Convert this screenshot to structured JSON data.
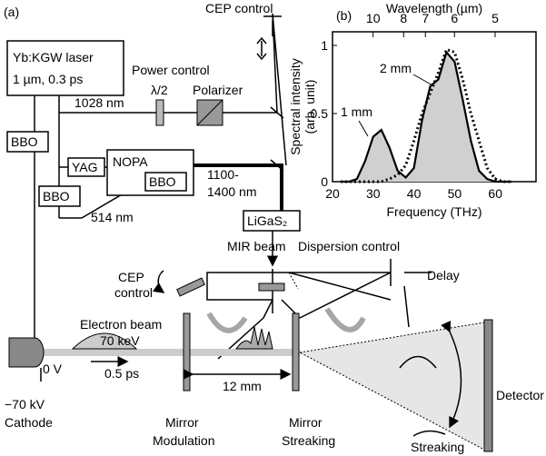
{
  "panel_a": {
    "label": "(a)",
    "texts": [
      "Yb:KGW laser",
      "1 µm, 0.3 ps",
      "CEP control",
      "Power control",
      "λ/2",
      "Polarizer",
      "1028 nm",
      "BBO",
      "YAG",
      "NOPA",
      "BBO",
      "BBO",
      "1100-",
      "1400 nm",
      "514 nm",
      "LiGaS₂",
      "MIR beam",
      "Dispersion control",
      "CEP",
      "control",
      "Delay",
      "Electron beam",
      "70 keV",
      "0 V",
      "0.5 ps",
      "12 mm",
      "−70 kV",
      "Cathode",
      "Mirror",
      "Modulation",
      "Mirror",
      "Streaking",
      "Detector",
      "Streaking"
    ]
  },
  "chart_data": {
    "type": "line",
    "label": "(b)",
    "xlabel": "Frequency (THz)",
    "x2label": "Wavelength (µm)",
    "ylabel": [
      "Spectral intensity",
      "(arb. unit)"
    ],
    "x": [
      22,
      24,
      26,
      28,
      30,
      32,
      34,
      36,
      38,
      40,
      42,
      44,
      46,
      48,
      50,
      52,
      54,
      56,
      58,
      60,
      62,
      64
    ],
    "series": [
      {
        "name": "1 mm",
        "color": "#000000",
        "fill": "#d0d0d0",
        "dash": "solid",
        "values": [
          0,
          0,
          0.02,
          0.15,
          0.33,
          0.38,
          0.25,
          0.08,
          0.03,
          0.1,
          0.45,
          0.7,
          0.75,
          0.95,
          0.88,
          0.6,
          0.3,
          0.08,
          0.02,
          0,
          0,
          0
        ]
      },
      {
        "name": "2 mm",
        "color": "#000000",
        "dash": "dotted",
        "values": [
          0,
          0,
          0,
          0,
          0,
          0,
          0.02,
          0.05,
          0.12,
          0.3,
          0.5,
          0.65,
          0.8,
          0.97,
          0.95,
          0.75,
          0.5,
          0.3,
          0.1,
          0.02,
          0,
          0
        ]
      }
    ],
    "xlim": [
      20,
      70
    ],
    "xticks": [
      20,
      30,
      40,
      50,
      60
    ],
    "x2ticks": [
      10,
      8,
      7,
      6,
      5
    ],
    "ylim": [
      0,
      1.1
    ],
    "yticks": [
      0,
      0.5,
      1
    ]
  }
}
